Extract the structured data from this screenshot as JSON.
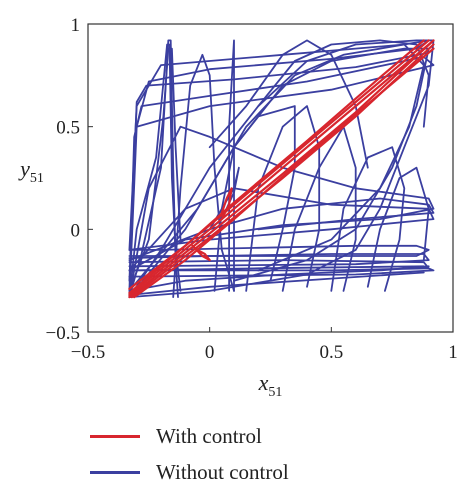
{
  "chart_data": {
    "type": "line",
    "title": "",
    "xlabel": "x",
    "xlabel_sub": "51",
    "ylabel": "y",
    "ylabel_sub": "51",
    "xlim": [
      -0.5,
      1
    ],
    "ylim": [
      -0.5,
      1
    ],
    "xticks": [
      -0.5,
      0,
      0.5,
      1
    ],
    "xtick_labels": [
      "−0.5",
      "0",
      "0.5",
      "1"
    ],
    "yticks": [
      -0.5,
      0,
      0.5,
      1
    ],
    "ytick_labels": [
      "−0.5",
      "0",
      "0.5",
      "1"
    ],
    "grid": false,
    "legend_position": "bottom",
    "series": [
      {
        "name": "Without control",
        "color": "#3b3fa0",
        "paths": [
          [
            [
              -0.33,
              -0.33
            ],
            [
              -0.28,
              -0.12
            ],
            [
              -0.2,
              0.3
            ],
            [
              -0.17,
              0.92
            ],
            [
              -0.16,
              0.92
            ],
            [
              -0.15,
              0.3
            ],
            [
              -0.14,
              -0.15
            ],
            [
              -0.13,
              -0.33
            ]
          ],
          [
            [
              -0.33,
              -0.33
            ],
            [
              -0.3,
              0.0
            ],
            [
              -0.22,
              0.35
            ],
            [
              -0.175,
              0.9
            ],
            [
              -0.165,
              0.9
            ],
            [
              -0.155,
              0.25
            ],
            [
              -0.14,
              -0.1
            ],
            [
              -0.12,
              -0.3
            ]
          ],
          [
            [
              -0.33,
              -0.3
            ],
            [
              -0.25,
              -0.05
            ],
            [
              -0.19,
              0.55
            ],
            [
              -0.17,
              0.88
            ],
            [
              -0.155,
              0.88
            ],
            [
              -0.14,
              0.4
            ],
            [
              -0.12,
              -0.05
            ]
          ],
          [
            [
              -0.33,
              -0.1
            ],
            [
              -0.2,
              -0.1
            ],
            [
              0.2,
              -0.09
            ],
            [
              0.6,
              -0.08
            ],
            [
              0.85,
              -0.08
            ],
            [
              0.9,
              -0.1
            ],
            [
              0.85,
              -0.13
            ],
            [
              0.4,
              -0.13
            ],
            [
              -0.33,
              -0.13
            ]
          ],
          [
            [
              -0.33,
              -0.14
            ],
            [
              0.0,
              -0.13
            ],
            [
              0.5,
              -0.12
            ],
            [
              0.88,
              -0.12
            ],
            [
              0.9,
              -0.15
            ],
            [
              0.6,
              -0.17
            ],
            [
              -0.33,
              -0.18
            ]
          ],
          [
            [
              -0.33,
              -0.16
            ],
            [
              0.3,
              -0.15
            ],
            [
              0.88,
              -0.16
            ],
            [
              0.9,
              -0.19
            ],
            [
              0.5,
              -0.2
            ],
            [
              -0.33,
              -0.2
            ]
          ],
          [
            [
              -0.33,
              -0.2
            ],
            [
              0.2,
              -0.19
            ],
            [
              0.88,
              -0.18
            ],
            [
              0.92,
              -0.2
            ],
            [
              0.6,
              -0.22
            ],
            [
              -0.33,
              -0.23
            ]
          ],
          [
            [
              -0.33,
              -0.3
            ],
            [
              -0.1,
              -0.25
            ],
            [
              0.3,
              -0.22
            ],
            [
              0.7,
              -0.2
            ],
            [
              0.9,
              -0.18
            ]
          ],
          [
            [
              -0.33,
              -0.32
            ],
            [
              0.0,
              -0.28
            ],
            [
              0.5,
              -0.24
            ],
            [
              0.88,
              -0.21
            ]
          ],
          [
            [
              -0.33,
              -0.33
            ],
            [
              -0.3,
              0.5
            ],
            [
              -0.25,
              0.72
            ],
            [
              0.0,
              0.78
            ],
            [
              0.5,
              0.83
            ],
            [
              0.85,
              0.88
            ],
            [
              0.9,
              0.92
            ],
            [
              0.8,
              0.9
            ],
            [
              0.3,
              0.85
            ],
            [
              -0.2,
              0.8
            ],
            [
              -0.3,
              0.6
            ],
            [
              -0.33,
              -0.1
            ]
          ],
          [
            [
              -0.33,
              -0.3
            ],
            [
              -0.31,
              0.45
            ],
            [
              -0.28,
              0.6
            ],
            [
              0.0,
              0.65
            ],
            [
              0.4,
              0.72
            ],
            [
              0.88,
              0.84
            ],
            [
              0.92,
              0.8
            ],
            [
              0.5,
              0.68
            ],
            [
              0.0,
              0.6
            ],
            [
              -0.3,
              0.5
            ]
          ],
          [
            [
              -0.33,
              -0.25
            ],
            [
              -0.3,
              0.62
            ],
            [
              -0.26,
              0.7
            ],
            [
              0.1,
              0.73
            ],
            [
              0.6,
              0.79
            ],
            [
              0.9,
              0.86
            ]
          ],
          [
            [
              -0.33,
              -0.33
            ],
            [
              -0.25,
              0.2
            ],
            [
              -0.12,
              0.5
            ],
            [
              0.0,
              0.45
            ],
            [
              0.3,
              0.3
            ],
            [
              0.6,
              0.2
            ],
            [
              0.9,
              0.15
            ],
            [
              0.92,
              0.1
            ],
            [
              0.7,
              0.05
            ],
            [
              0.3,
              0.02
            ],
            [
              -0.1,
              -0.05
            ],
            [
              -0.33,
              -0.2
            ]
          ],
          [
            [
              -0.33,
              -0.2
            ],
            [
              -0.1,
              0.1
            ],
            [
              0.1,
              0.2
            ],
            [
              0.5,
              0.12
            ],
            [
              0.9,
              0.1
            ],
            [
              0.92,
              0.05
            ],
            [
              0.5,
              0.0
            ],
            [
              0.0,
              -0.05
            ],
            [
              -0.33,
              -0.1
            ]
          ],
          [
            [
              -0.33,
              -0.15
            ],
            [
              0.0,
              0.0
            ],
            [
              0.3,
              0.1
            ],
            [
              0.7,
              0.15
            ],
            [
              0.9,
              0.12
            ],
            [
              0.92,
              0.08
            ],
            [
              0.6,
              0.05
            ],
            [
              0.2,
              0.0
            ]
          ],
          [
            [
              -0.33,
              -0.33
            ],
            [
              -0.2,
              -0.1
            ],
            [
              0.0,
              0.3
            ],
            [
              0.2,
              0.6
            ],
            [
              0.4,
              0.82
            ],
            [
              0.6,
              0.9
            ],
            [
              0.85,
              0.92
            ],
            [
              0.92,
              0.92
            ],
            [
              0.9,
              0.7
            ],
            [
              0.8,
              0.4
            ],
            [
              0.7,
              0.1
            ],
            [
              0.6,
              -0.1
            ],
            [
              0.4,
              -0.22
            ],
            [
              0.0,
              -0.3
            ],
            [
              -0.33,
              -0.33
            ]
          ],
          [
            [
              -0.33,
              -0.33
            ],
            [
              -0.1,
              0.0
            ],
            [
              0.1,
              0.4
            ],
            [
              0.3,
              0.7
            ],
            [
              0.5,
              0.82
            ],
            [
              0.8,
              0.88
            ],
            [
              0.9,
              0.88
            ],
            [
              0.85,
              0.6
            ],
            [
              0.75,
              0.3
            ],
            [
              0.6,
              0.0
            ],
            [
              0.4,
              -0.15
            ],
            [
              0.1,
              -0.25
            ]
          ],
          [
            [
              -0.33,
              -0.3
            ],
            [
              -0.05,
              0.1
            ],
            [
              0.15,
              0.5
            ],
            [
              0.35,
              0.75
            ],
            [
              0.55,
              0.85
            ],
            [
              0.8,
              0.9
            ],
            [
              0.88,
              0.8
            ],
            [
              0.82,
              0.5
            ],
            [
              0.7,
              0.2
            ],
            [
              0.5,
              -0.05
            ],
            [
              0.2,
              -0.2
            ]
          ],
          [
            [
              -0.15,
              -0.33
            ],
            [
              -0.12,
              0.2
            ],
            [
              -0.08,
              0.7
            ],
            [
              -0.03,
              0.85
            ],
            [
              0.0,
              0.75
            ],
            [
              0.02,
              0.3
            ],
            [
              0.05,
              -0.1
            ],
            [
              0.1,
              -0.3
            ]
          ],
          [
            [
              0.08,
              -0.3
            ],
            [
              0.08,
              0.5
            ],
            [
              0.1,
              0.92
            ],
            [
              0.1,
              0.2
            ],
            [
              0.1,
              -0.3
            ]
          ],
          [
            [
              0.02,
              -0.3
            ],
            [
              0.05,
              0.1
            ],
            [
              0.1,
              0.4
            ],
            [
              0.2,
              0.55
            ],
            [
              0.35,
              0.6
            ],
            [
              0.35,
              0.3
            ],
            [
              0.3,
              0.0
            ],
            [
              0.25,
              -0.25
            ]
          ],
          [
            [
              0.15,
              -0.3
            ],
            [
              0.2,
              0.2
            ],
            [
              0.3,
              0.5
            ],
            [
              0.4,
              0.6
            ],
            [
              0.45,
              0.4
            ],
            [
              0.45,
              0.0
            ],
            [
              0.4,
              -0.28
            ]
          ],
          [
            [
              0.3,
              -0.3
            ],
            [
              0.35,
              0.0
            ],
            [
              0.45,
              0.3
            ],
            [
              0.55,
              0.5
            ],
            [
              0.6,
              0.3
            ],
            [
              0.6,
              -0.05
            ],
            [
              0.55,
              -0.3
            ]
          ],
          [
            [
              0.5,
              -0.3
            ],
            [
              0.55,
              0.1
            ],
            [
              0.65,
              0.35
            ],
            [
              0.75,
              0.4
            ],
            [
              0.8,
              0.2
            ],
            [
              0.78,
              -0.05
            ],
            [
              0.72,
              -0.3
            ]
          ],
          [
            [
              0.65,
              -0.28
            ],
            [
              0.7,
              0.0
            ],
            [
              0.78,
              0.25
            ],
            [
              0.85,
              0.3
            ],
            [
              0.9,
              0.1
            ],
            [
              0.88,
              -0.15
            ]
          ],
          [
            [
              0.0,
              0.4
            ],
            [
              0.15,
              0.6
            ],
            [
              0.3,
              0.85
            ],
            [
              0.4,
              0.92
            ],
            [
              0.5,
              0.85
            ],
            [
              0.6,
              0.6
            ],
            [
              0.65,
              0.3
            ]
          ],
          [
            [
              0.2,
              0.6
            ],
            [
              0.35,
              0.82
            ],
            [
              0.5,
              0.9
            ],
            [
              0.7,
              0.92
            ],
            [
              0.85,
              0.9
            ],
            [
              0.9,
              0.75
            ],
            [
              0.88,
              0.5
            ]
          ],
          [
            [
              -0.05,
              -0.05
            ],
            [
              0.05,
              0.05
            ],
            [
              0.1,
              0.18
            ],
            [
              0.12,
              0.3
            ],
            [
              0.1,
              0.2
            ],
            [
              0.05,
              0.1
            ],
            [
              0.0,
              0.0
            ]
          ]
        ]
      },
      {
        "name": "With control",
        "color": "#d8262e",
        "paths": [
          [
            [
              -0.33,
              -0.33
            ],
            [
              0.0,
              -0.02
            ],
            [
              0.3,
              0.27
            ],
            [
              0.6,
              0.57
            ],
            [
              0.92,
              0.92
            ]
          ],
          [
            [
              -0.33,
              -0.32
            ],
            [
              0.0,
              0.0
            ],
            [
              0.3,
              0.3
            ],
            [
              0.6,
              0.6
            ],
            [
              0.91,
              0.91
            ]
          ],
          [
            [
              -0.32,
              -0.33
            ],
            [
              0.0,
              -0.04
            ],
            [
              0.3,
              0.25
            ],
            [
              0.6,
              0.55
            ],
            [
              0.92,
              0.9
            ]
          ],
          [
            [
              -0.33,
              -0.31
            ],
            [
              0.0,
              0.02
            ],
            [
              0.3,
              0.32
            ],
            [
              0.6,
              0.62
            ],
            [
              0.9,
              0.92
            ]
          ],
          [
            [
              -0.31,
              -0.33
            ],
            [
              -0.1,
              -0.15
            ],
            [
              0.1,
              0.05
            ],
            [
              0.4,
              0.36
            ],
            [
              0.7,
              0.66
            ],
            [
              0.92,
              0.88
            ]
          ],
          [
            [
              -0.33,
              -0.29
            ],
            [
              -0.1,
              -0.08
            ],
            [
              0.1,
              0.13
            ],
            [
              0.4,
              0.43
            ],
            [
              0.7,
              0.74
            ],
            [
              0.88,
              0.92
            ]
          ],
          [
            [
              -0.05,
              -0.1
            ],
            [
              -0.02,
              -0.12
            ],
            [
              0.0,
              -0.15
            ],
            [
              -0.03,
              -0.13
            ],
            [
              -0.07,
              -0.08
            ]
          ],
          [
            [
              0.05,
              0.05
            ],
            [
              0.08,
              0.12
            ],
            [
              0.09,
              0.2
            ],
            [
              0.07,
              0.15
            ],
            [
              0.05,
              0.08
            ]
          ]
        ]
      }
    ]
  }
}
